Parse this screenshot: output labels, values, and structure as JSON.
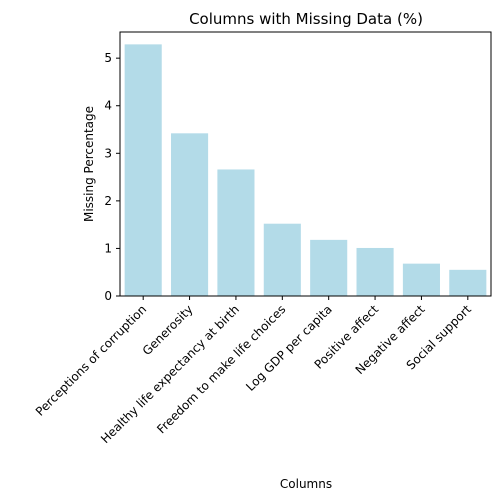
{
  "chart_data": {
    "type": "bar",
    "title": "Columns with Missing Data (%)",
    "xlabel": "Columns",
    "ylabel": "Missing Percentage",
    "categories": [
      "Perceptions of corruption",
      "Generosity",
      "Healthy life expectancy at birth",
      "Freedom to make life choices",
      "Log GDP per capita",
      "Positive affect",
      "Negative affect",
      "Social support"
    ],
    "values": [
      5.29,
      3.42,
      2.66,
      1.52,
      1.18,
      1.01,
      0.68,
      0.55
    ],
    "ylim": [
      0,
      5.55
    ],
    "yticks": [
      0,
      1,
      2,
      3,
      4,
      5
    ],
    "bar_color": "#add8e6",
    "grid": false,
    "legend": "none"
  }
}
